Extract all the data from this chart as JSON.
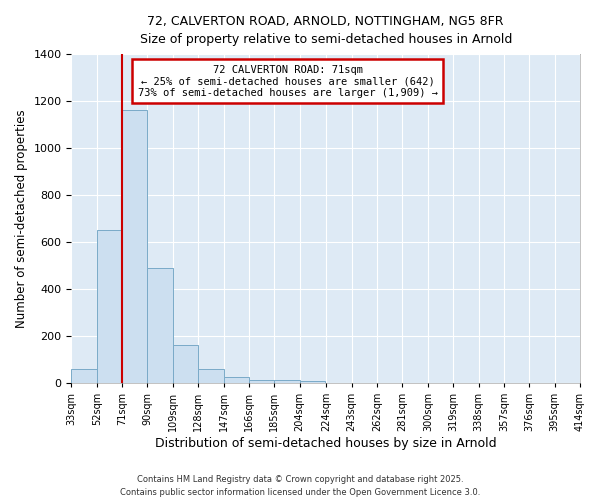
{
  "title_line1": "72, CALVERTON ROAD, ARNOLD, NOTTINGHAM, NG5 8FR",
  "title_line2": "Size of property relative to semi-detached houses in Arnold",
  "xlabel": "Distribution of semi-detached houses by size in Arnold",
  "ylabel": "Number of semi-detached properties",
  "property_size": 71,
  "property_label": "72 CALVERTON ROAD: 71sqm",
  "annotation_line1": "← 25% of semi-detached houses are smaller (642)",
  "annotation_line2": "73% of semi-detached houses are larger (1,909) →",
  "bin_edges": [
    33,
    52,
    71,
    90,
    109,
    128,
    147,
    166,
    185,
    204,
    224,
    243,
    262,
    281,
    300,
    319,
    338,
    357,
    376,
    395,
    414
  ],
  "counts": [
    60,
    650,
    1160,
    490,
    160,
    60,
    25,
    15,
    12,
    10,
    0,
    0,
    0,
    0,
    0,
    0,
    0,
    0,
    0,
    0
  ],
  "bar_color": "#ccdff0",
  "bar_edge_color": "#7aaac8",
  "vline_color": "#cc0000",
  "box_edge_color": "#cc0000",
  "box_face_color": "#ffffff",
  "fig_background": "#ffffff",
  "ax_background": "#deeaf5",
  "grid_color": "#ffffff",
  "ylim": [
    0,
    1400
  ],
  "yticks": [
    0,
    200,
    400,
    600,
    800,
    1000,
    1200,
    1400
  ],
  "footer_line1": "Contains HM Land Registry data © Crown copyright and database right 2025.",
  "footer_line2": "Contains public sector information licensed under the Open Government Licence 3.0."
}
